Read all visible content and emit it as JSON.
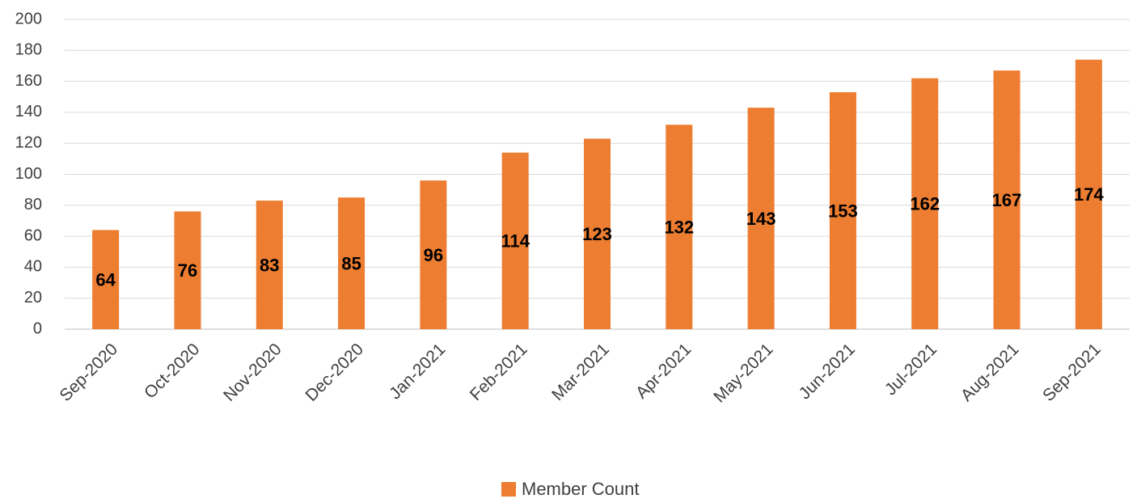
{
  "chart_data": {
    "type": "bar",
    "categories": [
      "Sep-2020",
      "Oct-2020",
      "Nov-2020",
      "Dec-2020",
      "Jan-2021",
      "Feb-2021",
      "Mar-2021",
      "Apr-2021",
      "May-2021",
      "Jun-2021",
      "Jul-2021",
      "Aug-2021",
      "Sep-2021"
    ],
    "series": [
      {
        "name": "Member Count",
        "color": "#ed7d31",
        "values": [
          64,
          76,
          83,
          85,
          96,
          114,
          123,
          132,
          143,
          153,
          162,
          167,
          174
        ]
      }
    ],
    "ylim": [
      0,
      200
    ],
    "yticks": [
      0,
      20,
      40,
      60,
      80,
      100,
      120,
      140,
      160,
      180,
      200
    ],
    "grid": true,
    "legend": "bottom"
  }
}
